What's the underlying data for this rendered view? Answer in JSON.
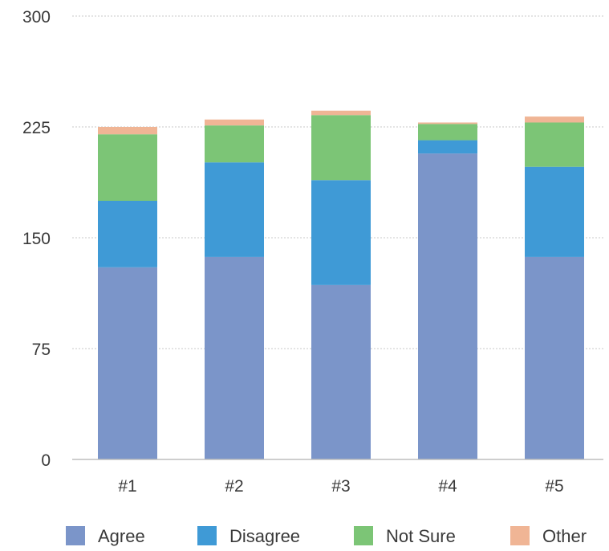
{
  "chart_data": {
    "type": "bar",
    "stacked": true,
    "title": "",
    "xlabel": "",
    "ylabel": "",
    "categories": [
      "#1",
      "#2",
      "#3",
      "#4",
      "#5"
    ],
    "ylim": [
      0,
      300
    ],
    "yticks": [
      0,
      75,
      150,
      225,
      300
    ],
    "grid": true,
    "legend_position": "bottom",
    "series": [
      {
        "name": "Agree",
        "color": "#7b95c9",
        "values": [
          130,
          137,
          118,
          207,
          137
        ]
      },
      {
        "name": "Disagree",
        "color": "#3f9ad6",
        "values": [
          45,
          64,
          71,
          9,
          61
        ]
      },
      {
        "name": "Not Sure",
        "color": "#7cc576",
        "values": [
          45,
          25,
          44,
          11,
          30
        ]
      },
      {
        "name": "Other",
        "color": "#f0b595",
        "values": [
          5,
          4,
          3,
          1,
          4
        ]
      }
    ]
  }
}
